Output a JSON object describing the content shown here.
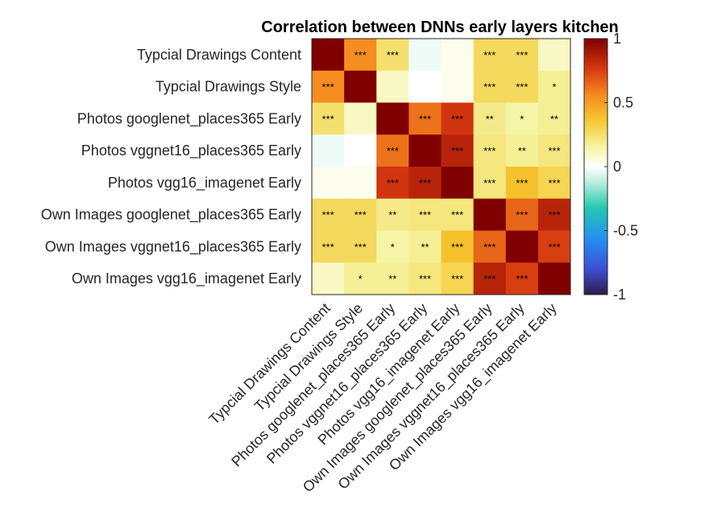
{
  "chart_data": {
    "type": "heatmap",
    "title": "Correlation between DNNs early layers kitchen",
    "labels": [
      "Typcial Drawings Content",
      "Typcial Drawings Style",
      "Photos googlenet_places365 Early",
      "Photos vggnet16_places365 Early",
      "Photos vgg16_imagenet Early",
      "Own Images googlenet_places365 Early",
      "Own Images vggnet16_places365 Early",
      "Own Images vgg16_imagenet Early"
    ],
    "values": [
      [
        1.0,
        0.55,
        0.25,
        -0.03,
        0.03,
        0.28,
        0.28,
        0.1
      ],
      [
        0.55,
        1.0,
        0.1,
        0.0,
        0.03,
        0.28,
        0.28,
        0.18
      ],
      [
        0.25,
        0.1,
        1.0,
        0.62,
        0.78,
        0.2,
        0.15,
        0.18
      ],
      [
        -0.03,
        0.0,
        0.62,
        1.0,
        0.85,
        0.22,
        0.18,
        0.22
      ],
      [
        0.03,
        0.03,
        0.78,
        0.85,
        1.0,
        0.22,
        0.38,
        0.3
      ],
      [
        0.28,
        0.28,
        0.2,
        0.22,
        0.22,
        1.0,
        0.65,
        0.85
      ],
      [
        0.28,
        0.28,
        0.15,
        0.18,
        0.38,
        0.65,
        1.0,
        0.75
      ],
      [
        0.1,
        0.18,
        0.18,
        0.22,
        0.3,
        0.85,
        0.75,
        1.0
      ]
    ],
    "significance": [
      [
        "",
        "***",
        "***",
        "",
        "",
        "***",
        "***",
        ""
      ],
      [
        "***",
        "",
        "",
        "",
        "",
        "***",
        "***",
        "*"
      ],
      [
        "***",
        "",
        "",
        "***",
        "***",
        "**",
        "*",
        "**"
      ],
      [
        "",
        "",
        "***",
        "",
        "***",
        "***",
        "**",
        "***"
      ],
      [
        "",
        "",
        "***",
        "***",
        "",
        "***",
        "***",
        "***"
      ],
      [
        "***",
        "***",
        "**",
        "***",
        "***",
        "",
        "***",
        "***"
      ],
      [
        "***",
        "***",
        "*",
        "**",
        "***",
        "***",
        "",
        "***"
      ],
      [
        "",
        "*",
        "**",
        "***",
        "***",
        "***",
        "***",
        ""
      ]
    ],
    "colorbar": {
      "min": -1,
      "max": 1,
      "ticks": [
        "1",
        "0.5",
        "0",
        "-0.5",
        "-1"
      ],
      "tick_values": [
        1,
        0.5,
        0,
        -0.5,
        -1
      ]
    }
  }
}
